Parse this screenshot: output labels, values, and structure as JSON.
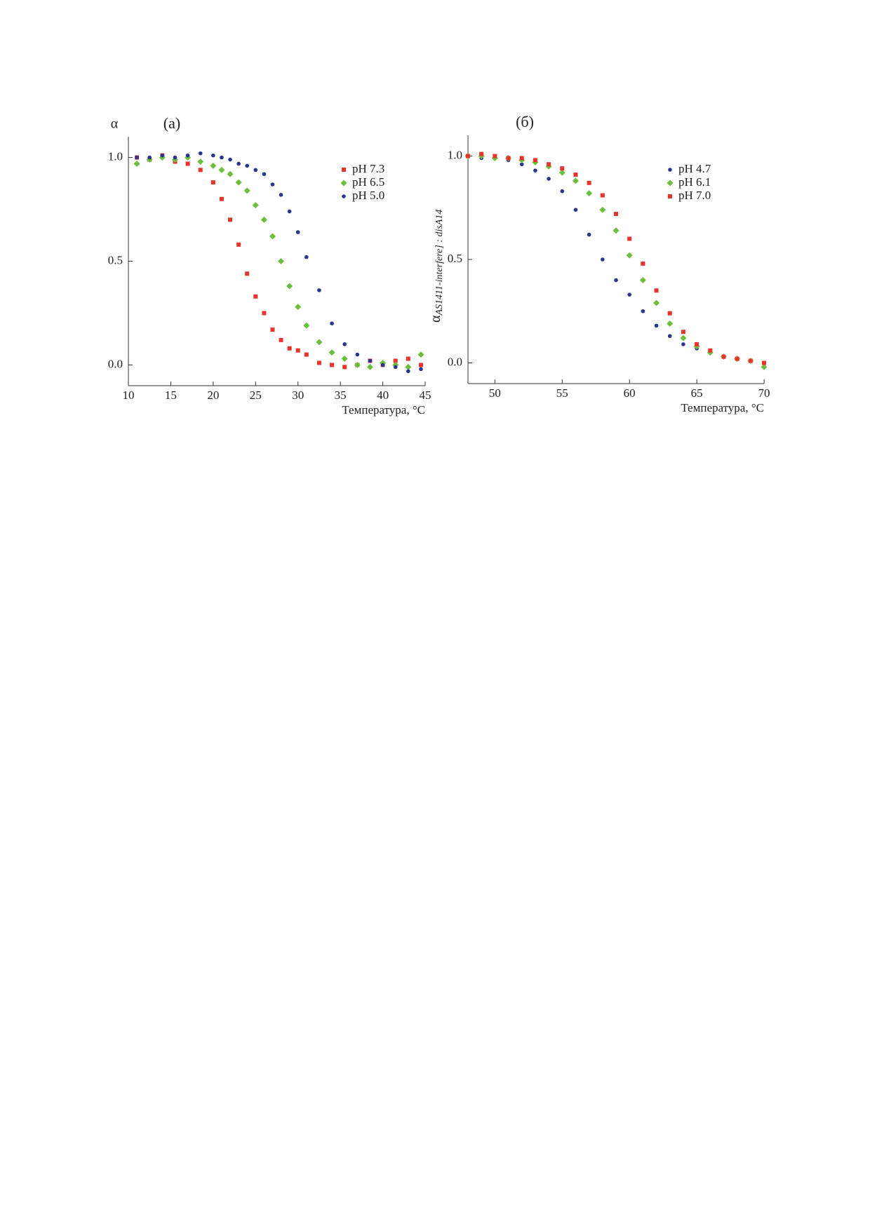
{
  "chart_data": [
    {
      "type": "scatter",
      "title": "(а)",
      "xlabel": "Температура, °C",
      "ylabel": "α",
      "xlim": [
        10,
        45
      ],
      "xticks": [
        10,
        15,
        20,
        25,
        30,
        35,
        40,
        45
      ],
      "ylim": [
        -0.1,
        1.1
      ],
      "yticks": [
        {
          "value": 0,
          "label": "0.0"
        },
        0.5,
        {
          "value": 1,
          "label": "1.0"
        }
      ],
      "x": [
        11,
        12.5,
        14,
        15.5,
        17,
        18.5,
        20,
        21,
        22,
        23,
        24,
        25,
        26,
        27,
        28,
        29,
        30,
        31,
        32.5,
        34,
        35.5,
        37,
        38.5,
        40,
        41.5,
        43,
        44.5
      ],
      "series": [
        {
          "name": "pH 7.3",
          "color": "#e8342a",
          "marker": "square",
          "values": [
            1.0,
            0.99,
            1.01,
            0.98,
            0.97,
            0.94,
            0.88,
            0.8,
            0.7,
            0.58,
            0.44,
            0.33,
            0.25,
            0.17,
            0.12,
            0.08,
            0.07,
            0.05,
            0.01,
            0.0,
            -0.01,
            0.0,
            0.02,
            0.0,
            0.02,
            0.03,
            0.0
          ]
        },
        {
          "name": "pH 6.5",
          "color": "#6cbf3c",
          "marker": "diamond",
          "values": [
            0.97,
            0.99,
            1.0,
            0.99,
            1.0,
            0.98,
            0.96,
            0.94,
            0.92,
            0.88,
            0.84,
            0.77,
            0.7,
            0.62,
            0.5,
            0.38,
            0.28,
            0.19,
            0.11,
            0.06,
            0.03,
            0.0,
            -0.01,
            0.01,
            0.0,
            -0.01,
            0.05
          ]
        },
        {
          "name": "pH 5.0",
          "color": "#2a3590",
          "marker": "circle",
          "values": [
            1.0,
            1.0,
            1.01,
            1.0,
            1.01,
            1.02,
            1.01,
            1.0,
            0.99,
            0.97,
            0.96,
            0.94,
            0.92,
            0.87,
            0.82,
            0.74,
            0.64,
            0.52,
            0.36,
            0.2,
            0.1,
            0.05,
            0.02,
            0.0,
            -0.01,
            -0.03,
            -0.02
          ]
        }
      ]
    },
    {
      "type": "scatter",
      "title": "(б)",
      "xlabel": "Температура, °C",
      "ylabel": "α",
      "ylabel_subscript": "AS1411-interfere] : disA14",
      "xlim": [
        48,
        70
      ],
      "xticks": [
        50,
        55,
        60,
        65,
        70
      ],
      "ylim": [
        -0.1,
        1.1
      ],
      "yticks": [
        {
          "value": 0,
          "label": "0.0"
        },
        0.5,
        {
          "value": 1,
          "label": "1.0"
        }
      ],
      "x": [
        48,
        49,
        50,
        51,
        52,
        53,
        54,
        55,
        56,
        57,
        58,
        59,
        60,
        61,
        62,
        63,
        64,
        65,
        66,
        67,
        68,
        69,
        70
      ],
      "series": [
        {
          "name": "pH 4.7",
          "color": "#2a3590",
          "marker": "circle",
          "values": [
            1.0,
            0.99,
            0.99,
            0.98,
            0.96,
            0.93,
            0.89,
            0.83,
            0.74,
            0.62,
            0.5,
            0.4,
            0.33,
            0.25,
            0.18,
            0.13,
            0.09,
            0.07,
            0.05,
            0.03,
            0.02,
            0.01,
            0.0
          ]
        },
        {
          "name": "pH 6.1",
          "color": "#6cbf3c",
          "marker": "diamond",
          "values": [
            1.0,
            1.0,
            0.99,
            0.99,
            0.98,
            0.97,
            0.95,
            0.92,
            0.88,
            0.82,
            0.74,
            0.64,
            0.52,
            0.4,
            0.29,
            0.19,
            0.12,
            0.08,
            0.05,
            0.03,
            0.02,
            0.01,
            -0.02
          ]
        },
        {
          "name": "pH 7.0",
          "color": "#e8342a",
          "marker": "square",
          "values": [
            1.0,
            1.01,
            1.0,
            0.99,
            0.99,
            0.98,
            0.96,
            0.94,
            0.91,
            0.87,
            0.81,
            0.72,
            0.6,
            0.48,
            0.35,
            0.24,
            0.15,
            0.09,
            0.06,
            0.03,
            0.02,
            0.01,
            0.0
          ]
        }
      ]
    }
  ]
}
